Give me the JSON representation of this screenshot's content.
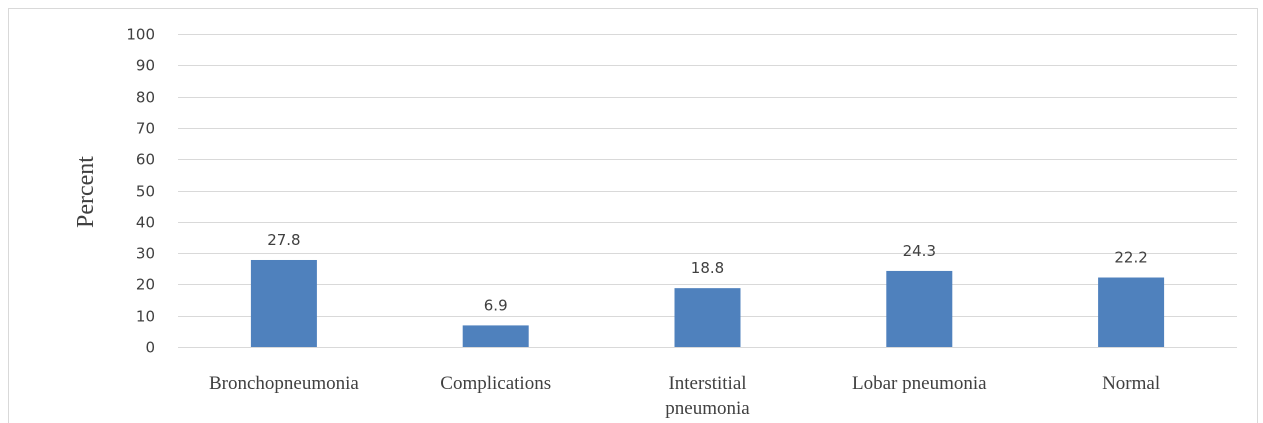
{
  "chart_data": {
    "type": "bar",
    "categories": [
      "Bronchopneumonia",
      "Complications",
      "Interstitial pneumonia",
      "Lobar pneumonia",
      "Normal"
    ],
    "category_lines": [
      [
        "Bronchopneumonia"
      ],
      [
        "Complications"
      ],
      [
        "Interstitial",
        "pneumonia"
      ],
      [
        "Lobar pneumonia"
      ],
      [
        "Normal"
      ]
    ],
    "values": [
      27.8,
      6.9,
      18.8,
      24.3,
      22.2
    ],
    "data_labels": [
      "27.8",
      "6.9",
      "18.8",
      "24.3",
      "22.2"
    ],
    "title": "",
    "xlabel": "",
    "ylabel": "Percent",
    "ylim": [
      0,
      100
    ],
    "yticks": [
      0,
      10,
      20,
      30,
      40,
      50,
      60,
      70,
      80,
      90,
      100
    ],
    "grid": true,
    "legend": "none",
    "bar_color": "#4f81bd",
    "grid_color": "#d9d9d9",
    "text_color": "#404040"
  }
}
